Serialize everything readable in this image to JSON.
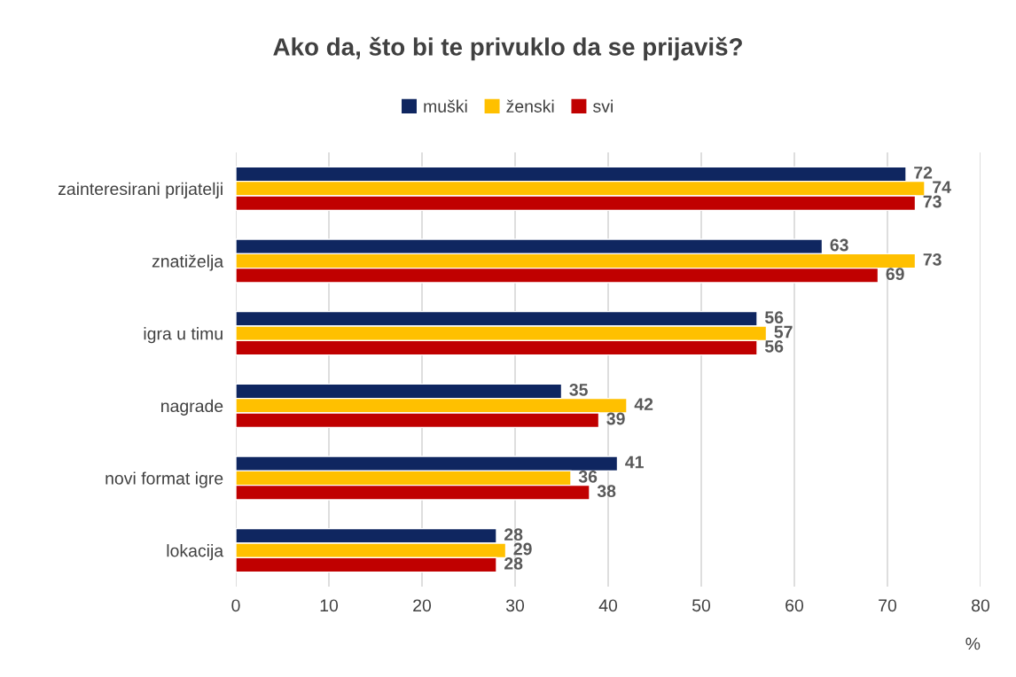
{
  "chart_data": {
    "type": "bar",
    "orientation": "horizontal",
    "title": "Ako da, što bi te privuklo da se prijaviš?",
    "xlabel": "%",
    "categories": [
      "zainteresirani prijatelji",
      "znatiželja",
      "igra u timu",
      "nagrade",
      "novi format igre",
      "lokacija"
    ],
    "series": [
      {
        "name": "muški",
        "color": "#0f2660",
        "values": [
          72,
          63,
          56,
          35,
          41,
          28
        ]
      },
      {
        "name": "ženski",
        "color": "#ffc000",
        "values": [
          74,
          73,
          57,
          42,
          36,
          29
        ]
      },
      {
        "name": "svi",
        "color": "#c00000",
        "values": [
          73,
          69,
          56,
          39,
          38,
          28
        ]
      }
    ],
    "xlim": [
      0,
      80
    ],
    "xticks": [
      0,
      10,
      20,
      30,
      40,
      50,
      60,
      70,
      80
    ],
    "grid": "x",
    "legend": "top",
    "data_labels": true
  }
}
